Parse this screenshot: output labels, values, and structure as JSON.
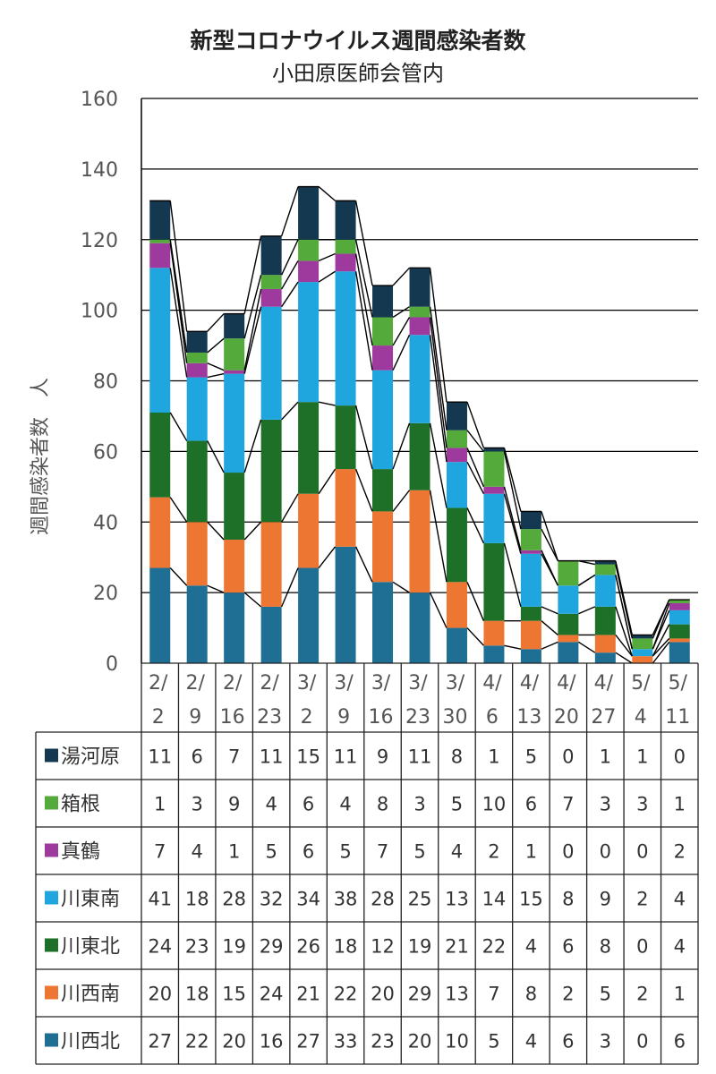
{
  "chart_data": {
    "type": "bar",
    "stacked": true,
    "title": "新型コロナウイルス週間感染者数",
    "subtitle": "小田原医師会管内",
    "ylabel": "週間感染者数　人",
    "ylim": [
      0,
      160
    ],
    "yticks": [
      0,
      20,
      40,
      60,
      80,
      100,
      120,
      140,
      160
    ],
    "grid": true,
    "categories": [
      {
        "line1": "2/",
        "line2": "2"
      },
      {
        "line1": "2/",
        "line2": "9"
      },
      {
        "line1": "2/",
        "line2": "16"
      },
      {
        "line1": "2/",
        "line2": "23"
      },
      {
        "line1": "3/",
        "line2": "2"
      },
      {
        "line1": "3/",
        "line2": "9"
      },
      {
        "line1": "3/",
        "line2": "16"
      },
      {
        "line1": "3/",
        "line2": "23"
      },
      {
        "line1": "3/",
        "line2": "30"
      },
      {
        "line1": "4/",
        "line2": "6"
      },
      {
        "line1": "4/",
        "line2": "13"
      },
      {
        "line1": "4/",
        "line2": "20"
      },
      {
        "line1": "4/",
        "line2": "27"
      },
      {
        "line1": "5/",
        "line2": "4"
      },
      {
        "line1": "5/",
        "line2": "11"
      }
    ],
    "series": [
      {
        "name": "川西北",
        "color": "#1f6e93",
        "values": [
          27,
          22,
          20,
          16,
          27,
          33,
          23,
          20,
          10,
          5,
          4,
          6,
          3,
          0,
          6
        ]
      },
      {
        "name": "川西南",
        "color": "#ed7633",
        "values": [
          20,
          18,
          15,
          24,
          21,
          22,
          20,
          29,
          13,
          7,
          8,
          2,
          5,
          2,
          1
        ]
      },
      {
        "name": "川東北",
        "color": "#1e7028",
        "values": [
          24,
          23,
          19,
          29,
          26,
          18,
          12,
          19,
          21,
          22,
          4,
          6,
          8,
          0,
          4
        ]
      },
      {
        "name": "川東南",
        "color": "#1fa6de",
        "values": [
          41,
          18,
          28,
          32,
          34,
          38,
          28,
          25,
          13,
          14,
          15,
          8,
          9,
          2,
          4
        ]
      },
      {
        "name": "真鶴",
        "color": "#9e3a9e",
        "values": [
          7,
          4,
          1,
          5,
          6,
          5,
          7,
          5,
          4,
          2,
          1,
          0,
          0,
          0,
          2
        ]
      },
      {
        "name": "箱根",
        "color": "#55aa3c",
        "values": [
          1,
          3,
          9,
          4,
          6,
          4,
          8,
          3,
          5,
          10,
          6,
          7,
          3,
          3,
          1
        ]
      },
      {
        "name": "湯河原",
        "color": "#13384f",
        "values": [
          11,
          6,
          7,
          11,
          15,
          11,
          9,
          11,
          8,
          1,
          5,
          0,
          1,
          1,
          0
        ]
      }
    ],
    "table_row_order": [
      "湯河原",
      "箱根",
      "真鶴",
      "川東南",
      "川東北",
      "川西南",
      "川西北"
    ]
  }
}
